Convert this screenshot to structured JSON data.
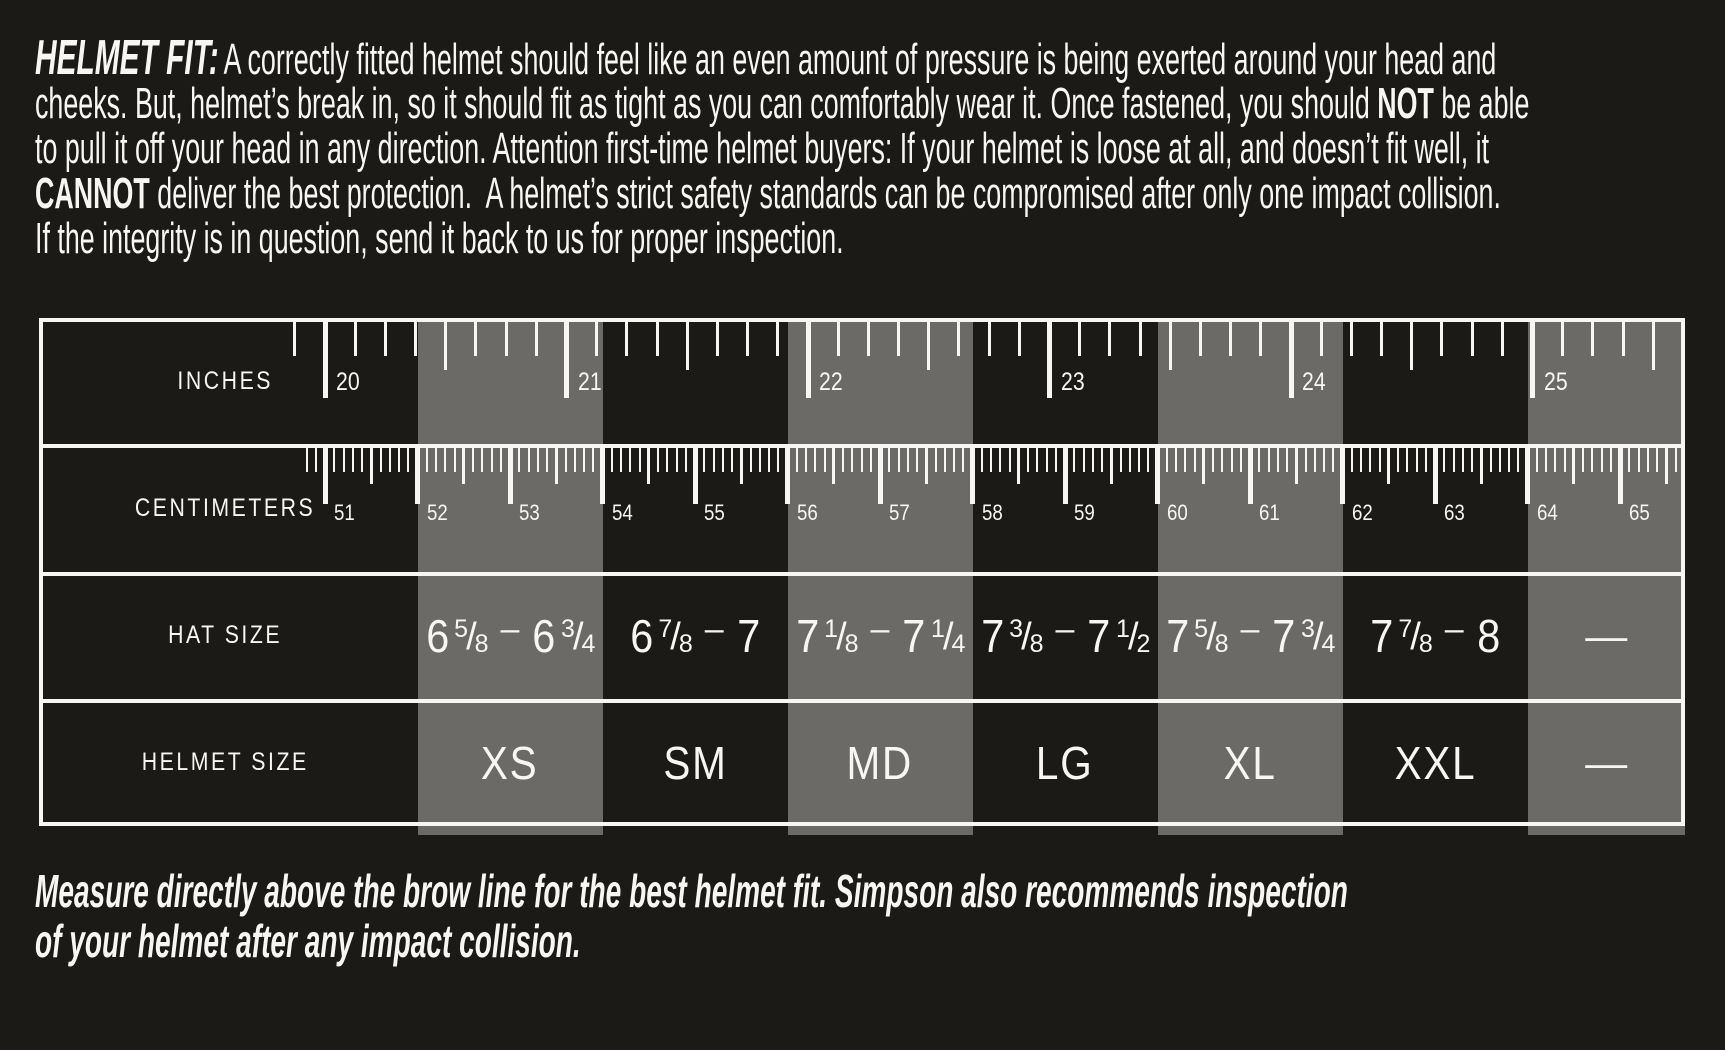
{
  "colors": {
    "background": "#1b1a17",
    "band_gray": "#6c6a67",
    "band_dark": "#1b1a17",
    "text": "#f7f6f2",
    "border": "#f7f6f2"
  },
  "intro": {
    "lines": [
      [
        {
          "s": "t",
          "t": "HELMET FIT:"
        },
        {
          "s": "n",
          "t": "A correctly fitted helmet should feel like an even amount of pressure is being exerted around your head and"
        }
      ],
      [
        {
          "s": "n",
          "t": "cheeks. But, helmet’s break in, so it should fit as tight as you can comfortably wear it. Once fastened, you should "
        },
        {
          "s": "b",
          "t": "NOT"
        },
        {
          "s": "n",
          "t": " be able"
        }
      ],
      [
        {
          "s": "n",
          "t": "to pull it off your head in any direction. Attention first-time helmet buyers: If your helmet is loose at all, and doesn’t fit well, it"
        }
      ],
      [
        {
          "s": "b",
          "t": "CANNOT"
        },
        {
          "s": "n",
          "t": " deliver the best protection.  A helmet’s strict safety standards can be compromised after only one impact collision."
        }
      ],
      [
        {
          "s": "n",
          "t": "If the integrity is in question, send it back to us for proper inspection."
        }
      ]
    ]
  },
  "table": {
    "row_labels": {
      "inches": "INCHES",
      "centimeters": "CENTIMETERS",
      "hat_size": "HAT SIZE",
      "helmet_size": "HELMET SIZE"
    },
    "inches_scale": {
      "tick_labels": [
        "20",
        "21",
        "22",
        "23",
        "24",
        "25"
      ],
      "subdivisions_per_unit": 8
    },
    "cm_scale": {
      "tick_labels": [
        "51",
        "52",
        "53",
        "54",
        "55",
        "56",
        "57",
        "58",
        "59",
        "60",
        "61",
        "62",
        "63",
        "64",
        "65"
      ],
      "subdivisions_per_unit": 10
    },
    "range_separator": "–",
    "fraction_separator": "/",
    "empty_cell": "—",
    "columns": [
      {
        "helmet_size": "XS",
        "band": "gray",
        "hat_size": {
          "from": {
            "whole": "6",
            "num": "5",
            "den": "8"
          },
          "to": {
            "whole": "6",
            "num": "3",
            "den": "4"
          }
        }
      },
      {
        "helmet_size": "SM",
        "band": "dark",
        "hat_size": {
          "from": {
            "whole": "6",
            "num": "7",
            "den": "8"
          },
          "to": {
            "whole": "7"
          }
        }
      },
      {
        "helmet_size": "MD",
        "band": "gray",
        "hat_size": {
          "from": {
            "whole": "7",
            "num": "1",
            "den": "8"
          },
          "to": {
            "whole": "7",
            "num": "1",
            "den": "4"
          }
        }
      },
      {
        "helmet_size": "LG",
        "band": "dark",
        "hat_size": {
          "from": {
            "whole": "7",
            "num": "3",
            "den": "8"
          },
          "to": {
            "whole": "7",
            "num": "1",
            "den": "2"
          }
        }
      },
      {
        "helmet_size": "XL",
        "band": "gray",
        "hat_size": {
          "from": {
            "whole": "7",
            "num": "5",
            "den": "8"
          },
          "to": {
            "whole": "7",
            "num": "3",
            "den": "4"
          }
        }
      },
      {
        "helmet_size": "XXL",
        "band": "dark",
        "hat_size": {
          "from": {
            "whole": "7",
            "num": "7",
            "den": "8"
          },
          "to": {
            "whole": "8"
          }
        }
      },
      {
        "helmet_size": "—",
        "band": "gray",
        "hat_size": null
      }
    ]
  },
  "footnote": {
    "lines": [
      "Measure directly above the brow line for the best helmet fit. Simpson also recommends inspection",
      "of your helmet after any impact collision."
    ]
  },
  "chart_data": {
    "type": "table",
    "title": "Helmet fit sizing chart",
    "row_headers": [
      "INCHES",
      "CENTIMETERS",
      "HAT SIZE",
      "HELMET SIZE"
    ],
    "inches_ticks": [
      20,
      21,
      22,
      23,
      24,
      25
    ],
    "cm_ticks": [
      51,
      52,
      53,
      54,
      55,
      56,
      57,
      58,
      59,
      60,
      61,
      62,
      63,
      64,
      65
    ],
    "columns": [
      {
        "helmet_size": "XS",
        "hat_size": "6 5/8 – 6 3/4"
      },
      {
        "helmet_size": "SM",
        "hat_size": "6 7/8 – 7"
      },
      {
        "helmet_size": "MD",
        "hat_size": "7 1/8 – 7 1/4"
      },
      {
        "helmet_size": "LG",
        "hat_size": "7 3/8 – 7 1/2"
      },
      {
        "helmet_size": "XL",
        "hat_size": "7 5/8 – 7 3/4"
      },
      {
        "helmet_size": "XXL",
        "hat_size": "7 7/8 – 8"
      },
      {
        "helmet_size": "—",
        "hat_size": "—"
      }
    ]
  }
}
